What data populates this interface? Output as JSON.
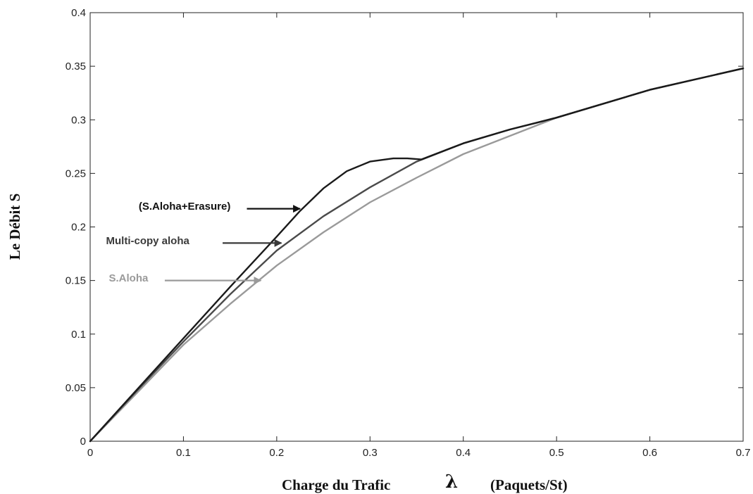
{
  "chart_data": {
    "type": "line",
    "xlabel_text": "Charge du Trafic",
    "xlabel_symbol": "λ",
    "xlabel_unit": "(Paquets/St)",
    "ylabel": "Le Débit  S",
    "xlim": [
      0,
      0.7
    ],
    "ylim": [
      0,
      0.4
    ],
    "xticks": [
      0,
      0.1,
      0.2,
      0.3,
      0.4,
      0.5,
      0.6,
      0.7
    ],
    "xtick_labels": [
      "0",
      "0.1",
      "0.2",
      "0.3",
      "0.4",
      "0.5",
      "0.6",
      "0.7"
    ],
    "yticks": [
      0,
      0.05,
      0.1,
      0.15,
      0.2,
      0.25,
      0.3,
      0.35,
      0.4
    ],
    "ytick_labels": [
      "0",
      "0.05",
      "0.1",
      "0.15",
      "0.2",
      "0.25",
      "0.3",
      "0.35",
      "0.4"
    ],
    "grid": false,
    "series": [
      {
        "name": "(S.Aloha+Erasure)",
        "color": "#1a1a1a",
        "x": [
          0,
          0.05,
          0.1,
          0.15,
          0.2,
          0.225,
          0.25,
          0.275,
          0.3,
          0.325,
          0.34,
          0.355,
          0.4,
          0.45,
          0.5,
          0.6,
          0.7
        ],
        "y": [
          0,
          0.048,
          0.096,
          0.144,
          0.191,
          0.215,
          0.236,
          0.252,
          0.261,
          0.264,
          0.264,
          0.263,
          0.278,
          0.291,
          0.302,
          0.328,
          0.348
        ]
      },
      {
        "name": "Multi-copy aloha",
        "color": "#4a4a4a",
        "x": [
          0,
          0.05,
          0.1,
          0.15,
          0.2,
          0.25,
          0.3,
          0.35,
          0.4,
          0.45,
          0.5,
          0.6,
          0.7
        ],
        "y": [
          0,
          0.047,
          0.093,
          0.137,
          0.178,
          0.21,
          0.237,
          0.261,
          0.278,
          0.291,
          0.302,
          0.328,
          0.348
        ]
      },
      {
        "name": "S.Aloha",
        "color": "#9a9a9a",
        "x": [
          0,
          0.05,
          0.1,
          0.15,
          0.2,
          0.25,
          0.3,
          0.35,
          0.4,
          0.45,
          0.5,
          0.6,
          0.7
        ],
        "y": [
          0,
          0.045,
          0.09,
          0.128,
          0.164,
          0.195,
          0.223,
          0.246,
          0.268,
          0.285,
          0.302,
          0.328,
          0.348
        ]
      }
    ],
    "annotations": [
      {
        "text": "(S.Aloha+Erasure)",
        "series": 0,
        "color": "#111111",
        "text_xy": [
          0.052,
          0.216
        ],
        "arrow_from": [
          0.168,
          0.217
        ],
        "arrow_to": [
          0.225,
          0.217
        ]
      },
      {
        "text": "Multi-copy aloha",
        "series": 1,
        "color": "#3a3a3a",
        "text_xy": [
          0.017,
          0.184
        ],
        "arrow_from": [
          0.142,
          0.185
        ],
        "arrow_to": [
          0.205,
          0.185
        ]
      },
      {
        "text": "S.Aloha",
        "series": 2,
        "color": "#9a9a9a",
        "text_xy": [
          0.02,
          0.149
        ],
        "arrow_from": [
          0.08,
          0.15
        ],
        "arrow_to": [
          0.183,
          0.15
        ]
      }
    ]
  }
}
